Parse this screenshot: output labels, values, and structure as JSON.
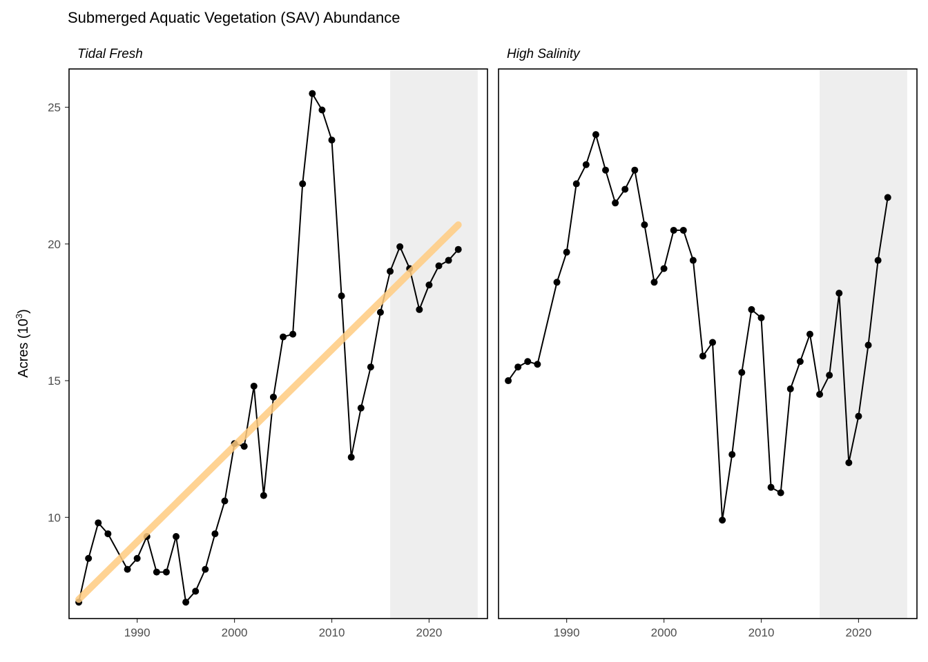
{
  "chart_data": {
    "type": "line",
    "title": "Submerged Aquatic Vegetation (SAV) Abundance",
    "ylabel_base": "Acres (10",
    "ylabel_exp": "3",
    "ylabel_close": ")",
    "xlim": [
      1983,
      2026
    ],
    "ylim": [
      6.3,
      26.4
    ],
    "x_ticks": [
      1990,
      2000,
      2010,
      2020
    ],
    "y_ticks": [
      10,
      15,
      20,
      25
    ],
    "highlight_range": [
      2016,
      2025
    ],
    "colors": {
      "highlight": "#eeeeee",
      "trend": "#ffcb80",
      "series": "#000000"
    },
    "panels": [
      {
        "name": "Tidal Fresh",
        "x": [
          1984,
          1985,
          1986,
          1987,
          1989,
          1990,
          1991,
          1992,
          1993,
          1994,
          1995,
          1996,
          1997,
          1998,
          1999,
          2000,
          2001,
          2002,
          2003,
          2004,
          2005,
          2006,
          2007,
          2008,
          2009,
          2010,
          2011,
          2012,
          2013,
          2014,
          2015,
          2016,
          2017,
          2018,
          2019,
          2020,
          2021,
          2022,
          2023
        ],
        "y": [
          6.9,
          8.5,
          9.8,
          9.4,
          8.1,
          8.5,
          9.3,
          8.0,
          8.0,
          9.3,
          6.9,
          7.3,
          8.1,
          9.4,
          10.6,
          12.7,
          12.6,
          14.8,
          10.8,
          14.4,
          16.6,
          16.7,
          22.2,
          25.5,
          24.9,
          23.8,
          18.1,
          12.2,
          14.0,
          15.5,
          17.5,
          19.0,
          19.9,
          19.1,
          17.6,
          18.5,
          19.2,
          19.4,
          19.8
        ],
        "trend": {
          "x": [
            1984,
            2023
          ],
          "y": [
            7.0,
            20.7
          ]
        }
      },
      {
        "name": "High Salinity",
        "x": [
          1984,
          1985,
          1986,
          1987,
          1989,
          1990,
          1991,
          1992,
          1993,
          1994,
          1995,
          1996,
          1997,
          1998,
          1999,
          2000,
          2001,
          2002,
          2003,
          2004,
          2005,
          2006,
          2007,
          2008,
          2009,
          2010,
          2011,
          2012,
          2013,
          2014,
          2015,
          2016,
          2017,
          2018,
          2019,
          2020,
          2021,
          2022,
          2023
        ],
        "y": [
          15.0,
          15.5,
          15.7,
          15.6,
          18.6,
          19.7,
          22.2,
          22.9,
          24.0,
          22.7,
          21.5,
          22.0,
          22.7,
          20.7,
          18.6,
          19.1,
          20.5,
          20.5,
          19.4,
          15.9,
          16.4,
          9.9,
          12.3,
          15.3,
          17.6,
          17.3,
          11.1,
          10.9,
          14.7,
          15.7,
          16.7,
          14.5,
          15.2,
          18.2,
          12.0,
          13.7,
          16.3,
          19.4,
          21.7
        ]
      }
    ]
  }
}
